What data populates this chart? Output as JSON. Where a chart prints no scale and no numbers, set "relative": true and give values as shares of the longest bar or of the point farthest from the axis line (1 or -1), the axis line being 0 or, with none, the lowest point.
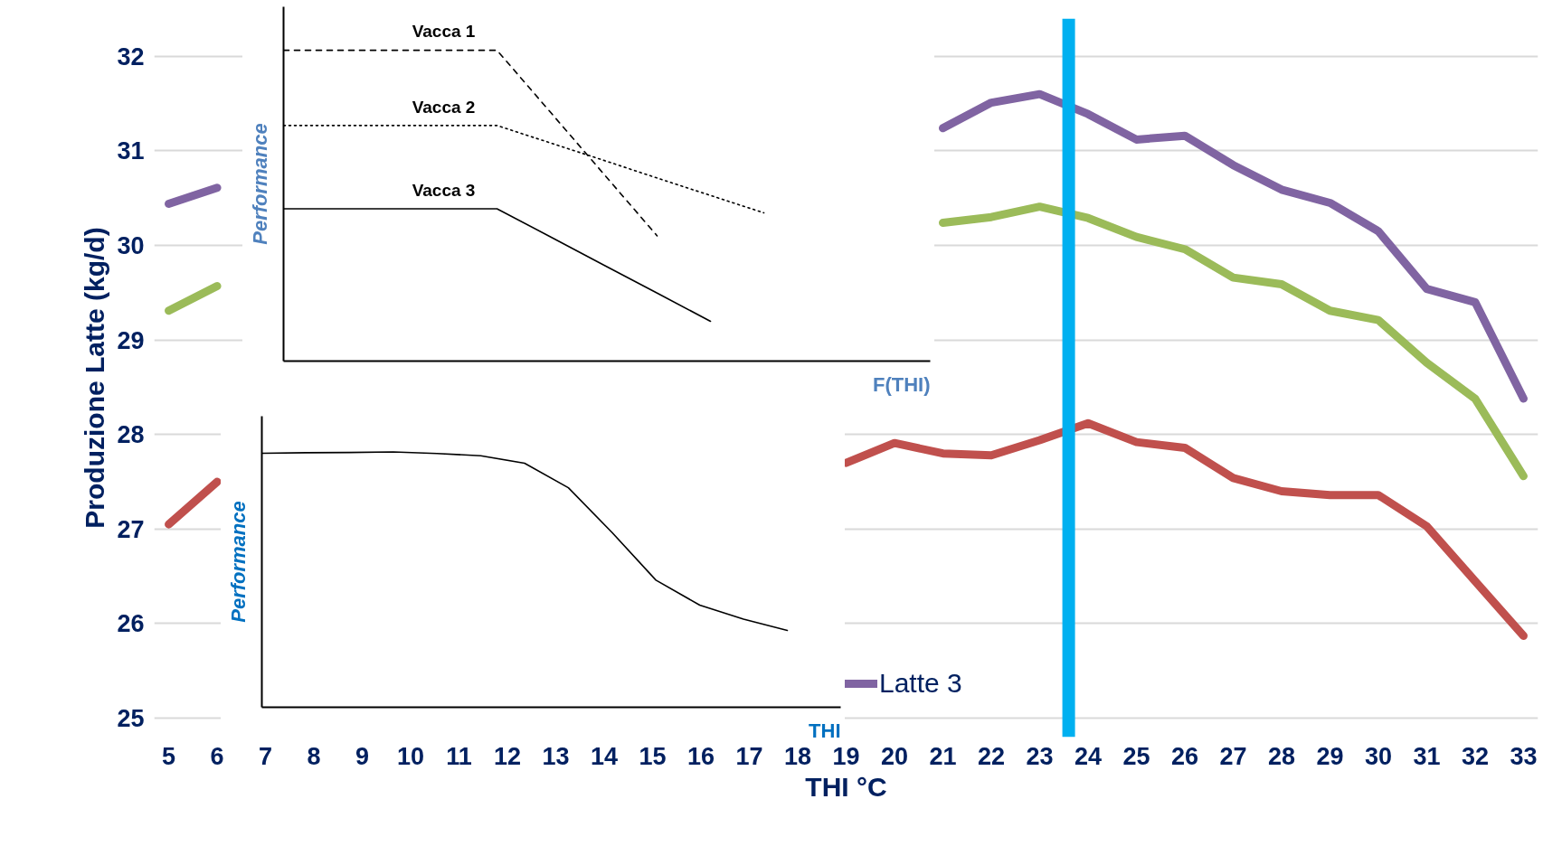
{
  "chart_data": [
    {
      "type": "line",
      "xlabel": "THI °C",
      "ylabel": "Produzione Latte (kg/d)",
      "x": [
        5,
        6,
        7,
        8,
        9,
        10,
        11,
        12,
        13,
        14,
        15,
        16,
        17,
        18,
        19,
        20,
        21,
        22,
        23,
        24,
        25,
        26,
        27,
        28,
        29,
        30,
        31,
        32,
        33
      ],
      "xlim": [
        4.7,
        33.3
      ],
      "xticks": [
        5,
        6,
        7,
        8,
        9,
        10,
        11,
        12,
        13,
        14,
        15,
        16,
        17,
        18,
        19,
        20,
        21,
        22,
        23,
        24,
        25,
        26,
        27,
        28,
        29,
        30,
        31,
        32,
        33
      ],
      "ylim": [
        24.8,
        32.4
      ],
      "yticks": [
        25,
        26,
        27,
        28,
        29,
        30,
        31,
        32
      ],
      "grid": "y",
      "legend": "bottom",
      "line_style": "solid",
      "ref_lines": [
        {
          "axis": "x",
          "value": 23.6,
          "color": "#00b0f0"
        }
      ],
      "series": [
        {
          "name": "Latte 3",
          "color": "#8064a2",
          "values": [
            30.44,
            30.61,
            null,
            null,
            null,
            null,
            null,
            null,
            null,
            null,
            null,
            null,
            null,
            null,
            null,
            null,
            31.24,
            31.51,
            31.6,
            31.39,
            31.12,
            31.16,
            30.85,
            30.59,
            30.45,
            30.15,
            29.54,
            29.4,
            28.38
          ]
        },
        {
          "color": "#9bbb59",
          "values": [
            29.31,
            29.57,
            null,
            null,
            null,
            null,
            null,
            null,
            null,
            null,
            null,
            null,
            null,
            null,
            null,
            null,
            30.24,
            30.3,
            30.41,
            30.29,
            30.09,
            29.96,
            29.66,
            29.59,
            29.31,
            29.21,
            28.76,
            28.38,
            27.56
          ]
        },
        {
          "color": "#c0504d",
          "values": [
            27.05,
            27.5,
            null,
            null,
            null,
            null,
            null,
            null,
            null,
            null,
            null,
            null,
            null,
            null,
            27.7,
            27.91,
            27.8,
            27.78,
            27.94,
            28.12,
            27.92,
            27.86,
            27.54,
            27.4,
            27.36,
            27.36,
            27.03,
            26.45,
            25.87
          ]
        }
      ]
    },
    {
      "type": "line",
      "relative": true,
      "xlabel": "F(THI)",
      "ylabel": "Performance",
      "categories": [
        null,
        null,
        null,
        null,
        null,
        null,
        null,
        null,
        null,
        null,
        null,
        null
      ],
      "series": [
        {
          "name": "Vacca 1",
          "color": "#000000",
          "line_style": "dashed",
          "values": [
            1,
            1,
            1,
            1,
            1,
            0.801,
            0.602,
            0.403,
            null,
            null,
            null,
            null
          ]
        },
        {
          "name": "Vacca 2",
          "color": "#000000",
          "line_style": "dotted",
          "values": [
            0.758,
            0.758,
            0.758,
            0.758,
            0.758,
            0.702,
            0.646,
            0.589,
            0.533,
            0.477,
            null,
            null
          ]
        },
        {
          "name": "Vacca 3",
          "color": "#000000",
          "line_style": "solid",
          "values": [
            0.49,
            0.49,
            0.49,
            0.49,
            0.49,
            0.4,
            0.309,
            0.219,
            0.128,
            null,
            null,
            null
          ]
        }
      ]
    },
    {
      "type": "line",
      "relative": true,
      "xlabel": "THI",
      "ylabel": "Performance",
      "categories": [
        null,
        null,
        null,
        null,
        null,
        null,
        null,
        null,
        null,
        null,
        null,
        null,
        null
      ],
      "series": [
        {
          "color": "#000000",
          "line_style": "solid",
          "values": [
            0.995,
            0.997,
            0.998,
            1,
            0.994,
            0.985,
            0.956,
            0.86,
            0.684,
            0.498,
            0.4,
            0.345,
            0.301
          ]
        }
      ]
    }
  ]
}
